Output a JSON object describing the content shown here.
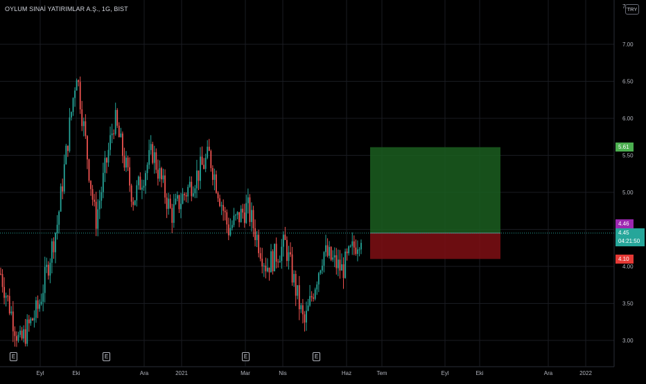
{
  "symbol": {
    "title": "OYLUM SINAİ YATIRIMLAR A.Ş., 1G, BIST",
    "currency": "TRY",
    "top_partial_label": "7."
  },
  "price_axis": {
    "labels": [
      "7.00",
      "6.50",
      "6.00",
      "5.50",
      "5.00",
      "4.50",
      "4.00",
      "3.50",
      "3.00"
    ],
    "min": 2.6,
    "max": 7.5
  },
  "time_axis": {
    "labels": [
      "Eyl",
      "Eki",
      "Ara",
      "2021",
      "Mar",
      "Nis",
      "Haz",
      "Tem",
      "Eyl",
      "Eki",
      "Ara",
      "2022"
    ]
  },
  "position_tool": {
    "target": 5.61,
    "entry": 4.45,
    "stop": 4.1,
    "profit_color": "#1b5e20",
    "loss_color": "#7f0f14"
  },
  "price_tags": {
    "target": "5.61",
    "entry_level": "4.46",
    "last_price": "4.45",
    "countdown": "04:21:50",
    "stop": "4.10"
  },
  "event_markers": [
    "E",
    "E",
    "E",
    "E"
  ],
  "colors": {
    "up": "#26a69a",
    "down": "#ef5350",
    "background": "#000000",
    "grid": "#1a1c22",
    "target_tag": "#4caf50",
    "entry_tag": "#9c27b0",
    "stop_tag": "#e53935",
    "last_price_tag": "#26a69a"
  },
  "chart_data": {
    "type": "candlestick",
    "symbol": "OYLUM SINAİ YATIRIMLAR A.Ş.",
    "interval": "1G",
    "ylim": [
      2.6,
      7.5
    ],
    "key_points": [
      {
        "x": "Ağu",
        "y": 3.9
      },
      {
        "x": "Eyl",
        "y": 2.95
      },
      {
        "x": "Eyl",
        "y": 3.45
      },
      {
        "x": "Eki",
        "y": 4.6
      },
      {
        "x": "Eki",
        "y": 6.65
      },
      {
        "x": "Eki",
        "y": 4.6
      },
      {
        "x": "Kas",
        "y": 6.0
      },
      {
        "x": "Kas",
        "y": 4.9
      },
      {
        "x": "Ara",
        "y": 5.55
      },
      {
        "x": "Ara",
        "y": 4.7
      },
      {
        "x": "2021",
        "y": 5.1
      },
      {
        "x": "Şub",
        "y": 5.5
      },
      {
        "x": "Mar",
        "y": 4.5
      },
      {
        "x": "Mar",
        "y": 4.8
      },
      {
        "x": "Mar",
        "y": 4.0
      },
      {
        "x": "Nis",
        "y": 4.3
      },
      {
        "x": "Nis",
        "y": 3.2
      },
      {
        "x": "Mayıs",
        "y": 4.2
      },
      {
        "x": "Haz",
        "y": 3.95
      },
      {
        "x": "Haz",
        "y": 4.45
      }
    ],
    "last_price": 4.45
  }
}
